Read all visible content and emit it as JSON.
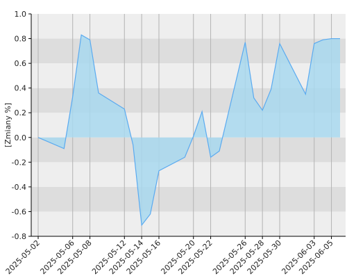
{
  "chart_data": {
    "type": "area",
    "ylabel": "[Zmiany %]",
    "ylim": [
      -0.8,
      1.0
    ],
    "yticks": [
      1.0,
      0.8,
      0.6,
      0.4,
      0.2,
      0.0,
      -0.2,
      -0.4,
      -0.6,
      -0.8
    ],
    "ytick_labels": [
      "1.0",
      "0.8",
      "0.6",
      "0.4",
      "0.2",
      "0.0",
      "-0.2",
      "-0.4",
      "-0.6",
      "-0.8"
    ],
    "xlim": [
      "2025-05-02",
      "2025-06-06"
    ],
    "xtick_labels": [
      "2025-05-02",
      "2025-05-06",
      "2025-05-08",
      "2025-05-12",
      "2025-05-14",
      "2025-05-16",
      "2025-05-20",
      "2025-05-22",
      "2025-05-26",
      "2025-05-28",
      "2025-05-30",
      "2025-06-03",
      "2025-06-05"
    ],
    "grid": true,
    "colors": {
      "band_light": "#eeeeee",
      "band_dark": "#dddddd",
      "fill": "#a8d8ee",
      "line": "#5aaaf0",
      "vgrid": "#b3b3b3",
      "axis": "#000000"
    },
    "series": [
      {
        "x": [
          "2025-05-02",
          "2025-05-05",
          "2025-05-06",
          "2025-05-07",
          "2025-05-08",
          "2025-05-09",
          "2025-05-12",
          "2025-05-13",
          "2025-05-14",
          "2025-05-15",
          "2025-05-16",
          "2025-05-19",
          "2025-05-20",
          "2025-05-21",
          "2025-05-22",
          "2025-05-23",
          "2025-05-26",
          "2025-05-27",
          "2025-05-28",
          "2025-05-29",
          "2025-05-30",
          "2025-06-02",
          "2025-06-03",
          "2025-06-04",
          "2025-06-05",
          "2025-06-06"
        ],
        "values": [
          0.0,
          -0.09,
          0.33,
          0.83,
          0.79,
          0.36,
          0.23,
          -0.06,
          -0.71,
          -0.62,
          -0.27,
          -0.16,
          0.01,
          0.21,
          -0.16,
          -0.11,
          0.77,
          0.32,
          0.22,
          0.39,
          0.76,
          0.35,
          0.76,
          0.79,
          0.8,
          0.8
        ]
      }
    ]
  }
}
